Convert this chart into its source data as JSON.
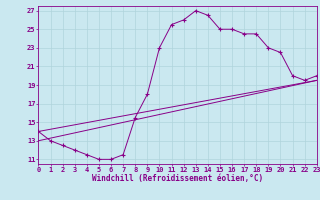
{
  "background_color": "#cae8f0",
  "grid_color": "#b0d4dc",
  "line_color": "#880088",
  "xlabel": "Windchill (Refroidissement éolien,°C)",
  "yticks": [
    11,
    13,
    15,
    17,
    19,
    21,
    23,
    25,
    27
  ],
  "xticks": [
    0,
    1,
    2,
    3,
    4,
    5,
    6,
    7,
    8,
    9,
    10,
    11,
    12,
    13,
    14,
    15,
    16,
    17,
    18,
    19,
    20,
    21,
    22,
    23
  ],
  "xlim": [
    0,
    23
  ],
  "ylim": [
    10.5,
    27.5
  ],
  "curve1_x": [
    0,
    1,
    2,
    3,
    4,
    5,
    6,
    7,
    8,
    9,
    10,
    11,
    12,
    13,
    14,
    15,
    16,
    17,
    18,
    19,
    20,
    21,
    22,
    23
  ],
  "curve1_y": [
    14.0,
    13.0,
    12.5,
    12.0,
    11.5,
    11.0,
    11.0,
    11.5,
    15.5,
    18.0,
    23.0,
    25.5,
    26.0,
    27.0,
    26.5,
    25.0,
    25.0,
    24.5,
    24.5,
    23.0,
    22.5,
    20.0,
    19.5,
    20.0
  ],
  "line1_x": [
    0,
    23
  ],
  "line1_y": [
    13.0,
    19.5
  ],
  "line2_x": [
    0,
    23
  ],
  "line2_y": [
    14.0,
    19.5
  ],
  "font_size_label": 5.5,
  "font_size_tick": 5.0
}
